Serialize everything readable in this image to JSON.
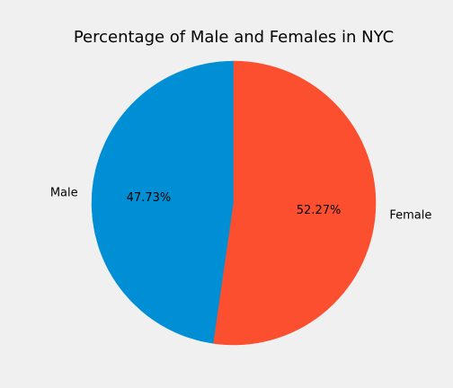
{
  "chart_data": {
    "type": "pie",
    "title": "Percentage of Male and Females in NYC",
    "slices": [
      {
        "label": "Male",
        "value": 47.73,
        "pct_label": "47.73%",
        "color": "#008fd5"
      },
      {
        "label": "Female",
        "value": 52.27,
        "pct_label": "52.27%",
        "color": "#fc4f30"
      }
    ],
    "start_angle": 90,
    "direction": "counterclockwise"
  }
}
